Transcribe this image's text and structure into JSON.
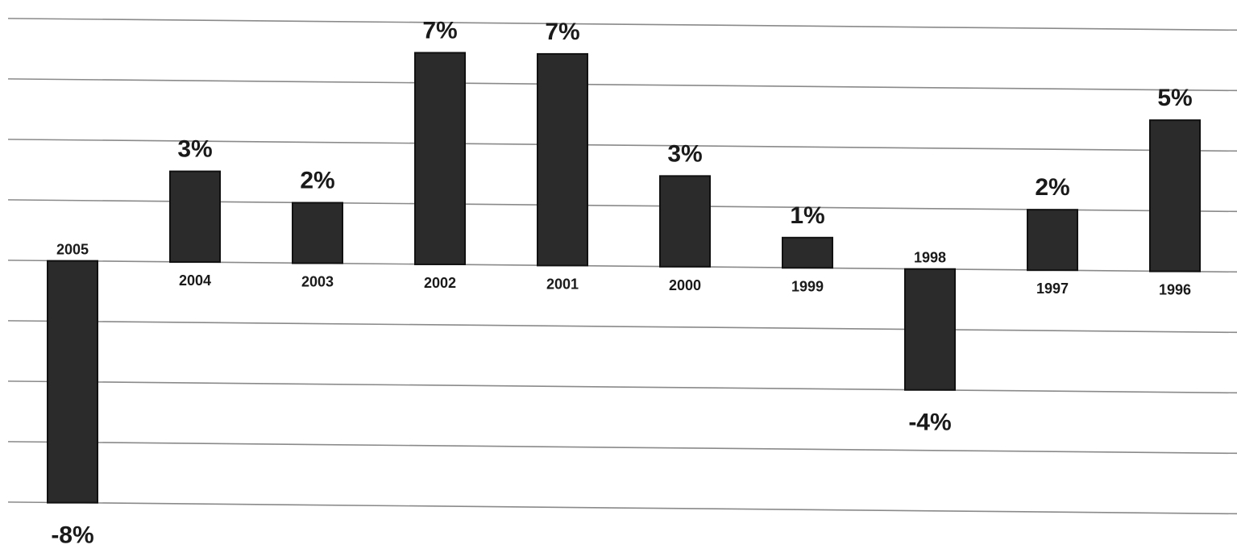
{
  "chart_data": {
    "type": "bar",
    "categories": [
      "2005",
      "2004",
      "2003",
      "2002",
      "2001",
      "2000",
      "1999",
      "1998",
      "1997",
      "1996"
    ],
    "values": [
      -8,
      3,
      2,
      7,
      7,
      3,
      1,
      -4,
      2,
      5
    ],
    "value_labels": [
      "-8%",
      "3%",
      "2%",
      "7%",
      "7%",
      "3%",
      "1%",
      "-4%",
      "2%",
      "5%"
    ],
    "title": "",
    "xlabel": "",
    "ylabel": "",
    "ylim": [
      -8,
      8
    ],
    "grid": true,
    "legend": "none",
    "bar_color": "#2b2b2b"
  }
}
